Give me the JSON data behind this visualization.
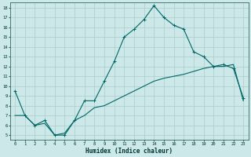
{
  "title": "",
  "xlabel": "Humidex (Indice chaleur)",
  "ylabel": "",
  "bg_color": "#cce8e8",
  "grid_color": "#aacccc",
  "line_color": "#006666",
  "xlim": [
    -0.5,
    23.5
  ],
  "ylim": [
    4.5,
    18.5
  ],
  "yticks": [
    5,
    6,
    7,
    8,
    9,
    10,
    11,
    12,
    13,
    14,
    15,
    16,
    17,
    18
  ],
  "xticks": [
    0,
    1,
    2,
    3,
    4,
    5,
    6,
    7,
    8,
    9,
    10,
    11,
    12,
    13,
    14,
    15,
    16,
    17,
    18,
    19,
    20,
    21,
    22,
    23
  ],
  "line1_x": [
    0,
    1,
    2,
    3,
    4,
    5,
    6,
    7,
    8,
    9,
    10,
    11,
    12,
    13,
    14,
    15,
    16,
    17,
    18,
    19,
    20,
    21,
    22,
    23
  ],
  "line1_y": [
    9.5,
    7.0,
    6.0,
    6.5,
    5.0,
    5.0,
    6.5,
    8.5,
    8.5,
    10.5,
    12.5,
    15.0,
    15.8,
    16.8,
    18.2,
    17.0,
    16.2,
    15.8,
    13.5,
    13.0,
    12.0,
    12.2,
    11.8,
    8.8
  ],
  "line2_x": [
    0,
    1,
    2,
    3,
    4,
    5,
    6,
    7,
    8,
    9,
    10,
    11,
    12,
    13,
    14,
    15,
    16,
    17,
    18,
    19,
    20,
    21,
    22,
    23
  ],
  "line2_y": [
    7.0,
    7.0,
    6.0,
    6.2,
    5.0,
    5.2,
    6.5,
    7.0,
    7.8,
    8.0,
    8.5,
    9.0,
    9.5,
    10.0,
    10.5,
    10.8,
    11.0,
    11.2,
    11.5,
    11.8,
    12.0,
    12.0,
    12.2,
    8.5
  ]
}
